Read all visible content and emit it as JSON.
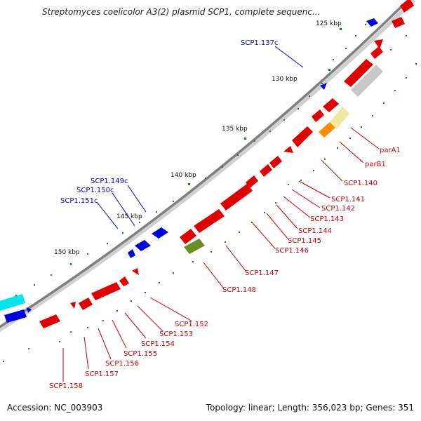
{
  "title": "Streptomyces coelicolor A3(2) plasmid SCP1, complete sequenc...",
  "footer": {
    "accession": "Accession: NC_003903",
    "stats": "Topology: linear; Length: 356,023 bp; Genes: 351"
  },
  "colors": {
    "backbone": "#888888",
    "forward_gene": "#e00000",
    "reverse_gene": "#0000dd",
    "tick": "#1f7a1f",
    "label_forward": "#cc0000",
    "label_reverse": "#0000cc",
    "olive": "#6b8e23",
    "orange": "#ff8c00",
    "khaki": "#eee8a0",
    "silver": "#c8c8c8",
    "cyan": "#00e5ee"
  },
  "scale_labels": [
    "125 kbp",
    "130 kbp",
    "135 kbp",
    "140 kbp",
    "145 kbp",
    "150 kbp"
  ],
  "gene_labels_reverse": [
    "SCP1.137c",
    "SCP1.149c",
    "SCP1.150c",
    "SCP1.151c"
  ],
  "gene_labels_forward": [
    "parA1",
    "parB1",
    "SCP1.140",
    "SCP1.141",
    "SCP1.142",
    "SCP1.143",
    "SCP1.144",
    "SCP1.145",
    "SCP1.146",
    "SCP1.147",
    "SCP1.148",
    "SCP1.152",
    "SCP1.153",
    "SCP1.154",
    "SCP1.155",
    "SCP1.156",
    "SCP1.157",
    "SCP1.158"
  ]
}
